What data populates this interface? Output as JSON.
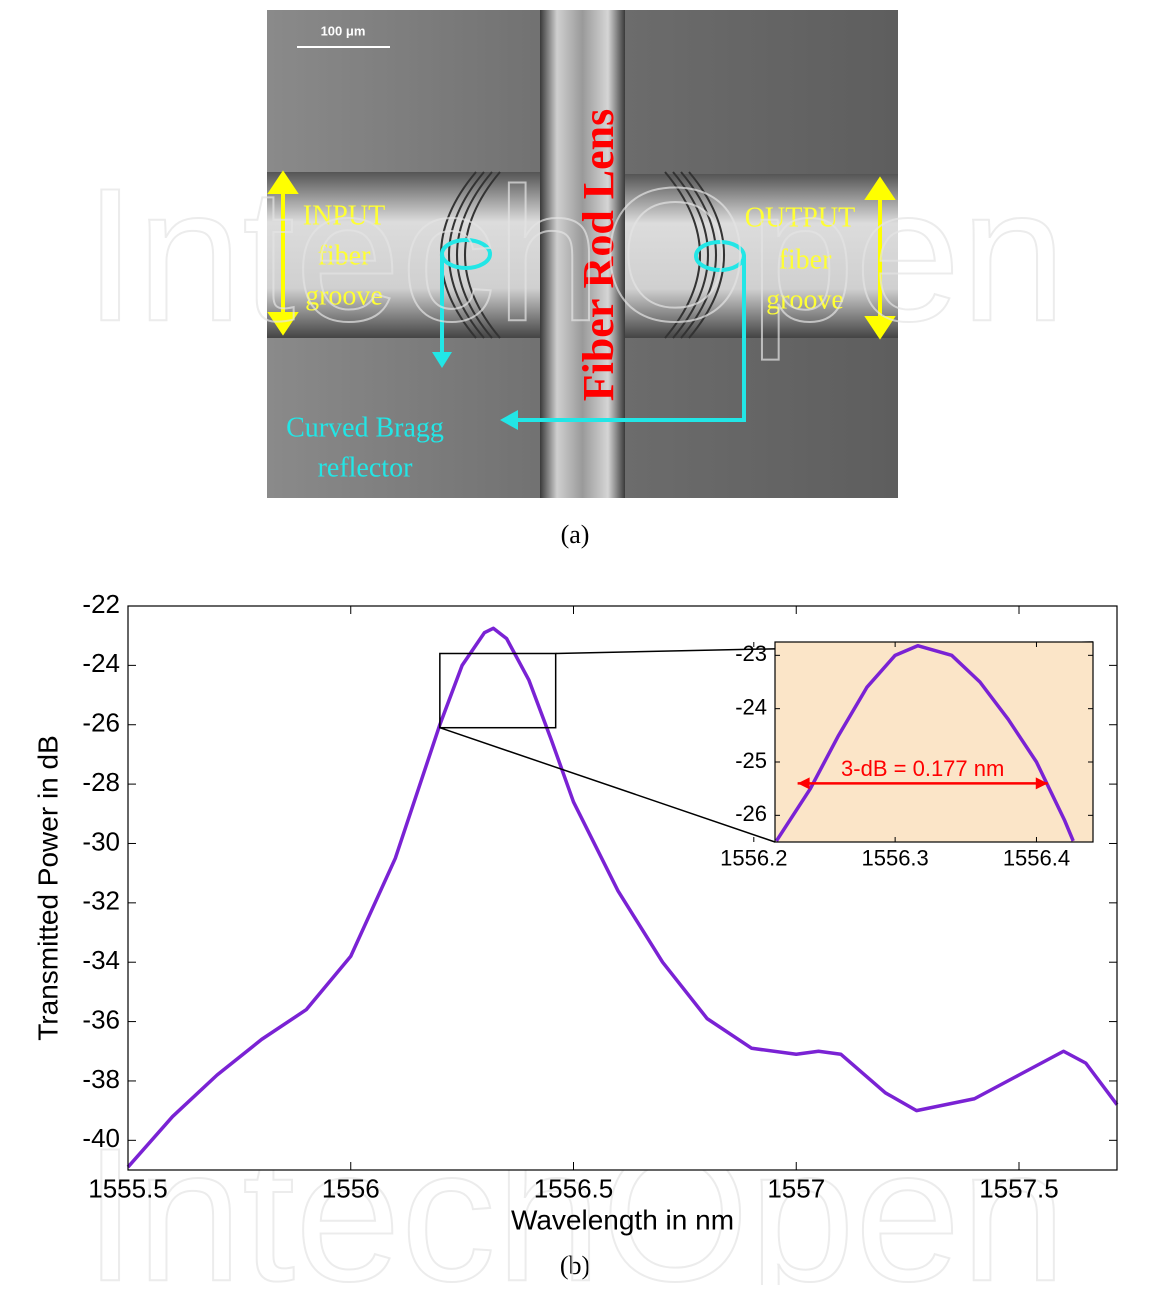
{
  "micrograph": {
    "scale_bar": "100 μm",
    "rod_label": "Fiber Rod Lens",
    "input_label": [
      "INPUT",
      "fiber",
      "groove"
    ],
    "output_label": [
      "OUTPUT",
      "fiber",
      "groove"
    ],
    "reflector_label": [
      "Curved Bragg",
      "reflector"
    ],
    "caption": "(a)"
  },
  "caption_b": "(b)",
  "watermark": "IntechOpen",
  "chart_data": [
    {
      "type": "line",
      "xlabel": "Wavelength in nm",
      "ylabel": "Transmitted Power in dB",
      "color": "#7a22d4",
      "x": [
        1555.5,
        1555.6,
        1555.7,
        1555.8,
        1555.9,
        1556.0,
        1556.1,
        1556.2,
        1556.25,
        1556.3,
        1556.32,
        1556.35,
        1556.4,
        1556.45,
        1556.5,
        1556.6,
        1556.7,
        1556.8,
        1556.9,
        1557.0,
        1557.05,
        1557.1,
        1557.2,
        1557.27,
        1557.4,
        1557.5,
        1557.6,
        1557.65,
        1557.72
      ],
      "values": [
        -40.9,
        -39.2,
        -37.8,
        -36.6,
        -35.6,
        -33.8,
        -30.5,
        -26.0,
        -24.0,
        -22.9,
        -22.75,
        -23.1,
        -24.5,
        -26.5,
        -28.6,
        -31.6,
        -34.0,
        -35.9,
        -36.9,
        -37.1,
        -37.0,
        -37.1,
        -38.4,
        -39.0,
        -38.6,
        -37.8,
        -37.0,
        -37.4,
        -38.8
      ],
      "xlim": [
        1555.5,
        1557.72
      ],
      "ylim": [
        -41,
        -22
      ],
      "xticks": [
        1555.5,
        1556,
        1556.5,
        1557,
        1557.5
      ],
      "yticks": [
        -22,
        -24,
        -26,
        -28,
        -30,
        -32,
        -34,
        -36,
        -38,
        -40
      ],
      "zoom_box": {
        "x": [
          1556.2,
          1556.46
        ],
        "y": [
          -26.1,
          -23.6
        ]
      }
    },
    {
      "type": "line",
      "color": "#7a22d4",
      "background": "#fbe5c8",
      "x": [
        1556.216,
        1556.24,
        1556.26,
        1556.28,
        1556.3,
        1556.316,
        1556.34,
        1556.36,
        1556.38,
        1556.4,
        1556.42,
        1556.426
      ],
      "values": [
        -26.48,
        -25.5,
        -24.5,
        -23.6,
        -23.0,
        -22.82,
        -23.0,
        -23.5,
        -24.2,
        -25.0,
        -26.1,
        -26.48
      ],
      "xlim": [
        1556.215,
        1556.44
      ],
      "ylim": [
        -26.5,
        -22.75
      ],
      "xticks": [
        1556.2,
        1556.3,
        1556.4
      ],
      "yticks": [
        -23,
        -24,
        -25,
        -26
      ],
      "annotation": {
        "text": "3-dB = 0.177 nm",
        "x": [
          1556.231,
          1556.408
        ],
        "y": -25.4,
        "color": "#ff0000"
      }
    }
  ]
}
